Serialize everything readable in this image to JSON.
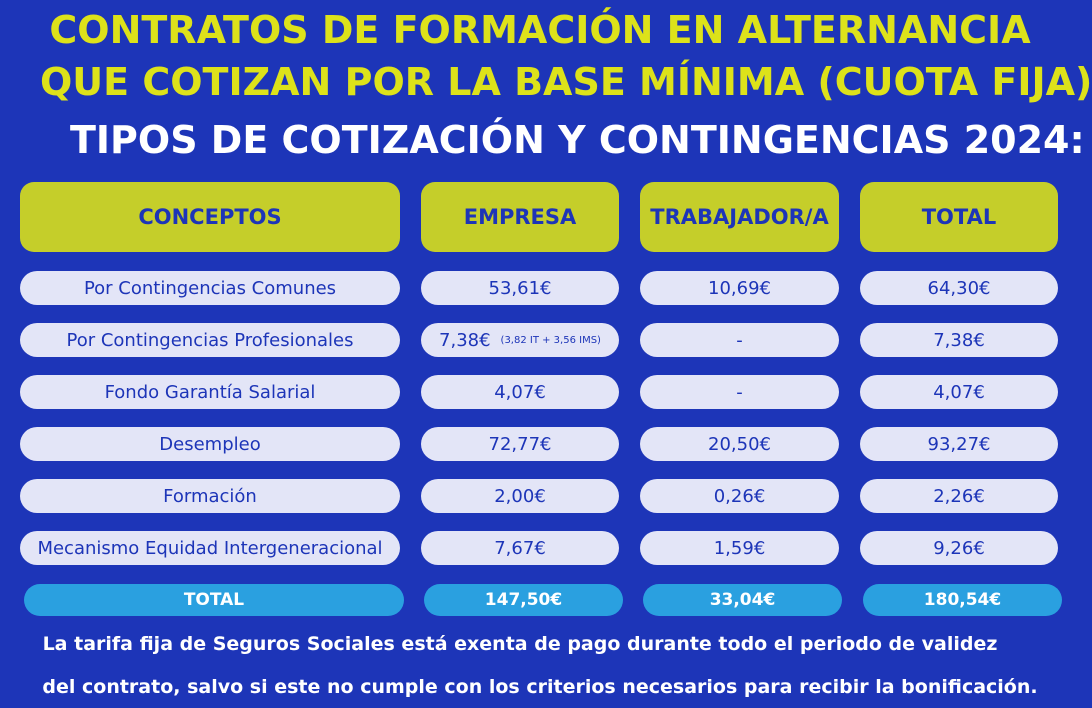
{
  "title": {
    "line1": "CONTRATOS DE FORMACIÓN EN ALTERNANCIA",
    "line2": "QUE COTIZAN POR LA BASE MÍNIMA (CUOTA FIJA)",
    "line3": "TIPOS DE COTIZACIÓN Y CONTINGENCIAS 2024:"
  },
  "table": {
    "headers": [
      "CONCEPTOS",
      "EMPRESA",
      "TRABAJADOR/A",
      "TOTAL"
    ],
    "rows": [
      {
        "concepto": "Por Contingencias Comunes",
        "empresa": "53,61€",
        "empresa_note": "",
        "trabajador": "10,69€",
        "total": "64,30€"
      },
      {
        "concepto": "Por Contingencias Profesionales",
        "empresa": "7,38€",
        "empresa_note": "(3,82 IT + 3,56 IMS)",
        "trabajador": "-",
        "total": "7,38€"
      },
      {
        "concepto": "Fondo Garantía Salarial",
        "empresa": "4,07€",
        "empresa_note": "",
        "trabajador": "-",
        "total": "4,07€"
      },
      {
        "concepto": "Desempleo",
        "empresa": "72,77€",
        "empresa_note": "",
        "trabajador": "20,50€",
        "total": "93,27€"
      },
      {
        "concepto": "Formación",
        "empresa": "2,00€",
        "empresa_note": "",
        "trabajador": "0,26€",
        "total": "2,26€"
      },
      {
        "concepto": "Mecanismo Equidad Intergeneracional",
        "empresa": "7,67€",
        "empresa_note": "",
        "trabajador": "1,59€",
        "total": "9,26€"
      }
    ],
    "total_row": {
      "concepto": "TOTAL",
      "empresa": "147,50€",
      "trabajador": "33,04€",
      "total": "180,54€"
    }
  },
  "footer": {
    "line1": "La tarifa fija de Seguros Sociales está exenta de pago durante todo el periodo de validez",
    "line2": "del contrato, salvo si este no cumple con los criterios necesarios para recibir la bonificación."
  },
  "colors": {
    "background": "#1d35b8",
    "title_yellow": "#dde21a",
    "header_fill": "#c5ce2a",
    "cell_fill": "#e3e5f7",
    "total_fill": "#2aa0e0"
  }
}
